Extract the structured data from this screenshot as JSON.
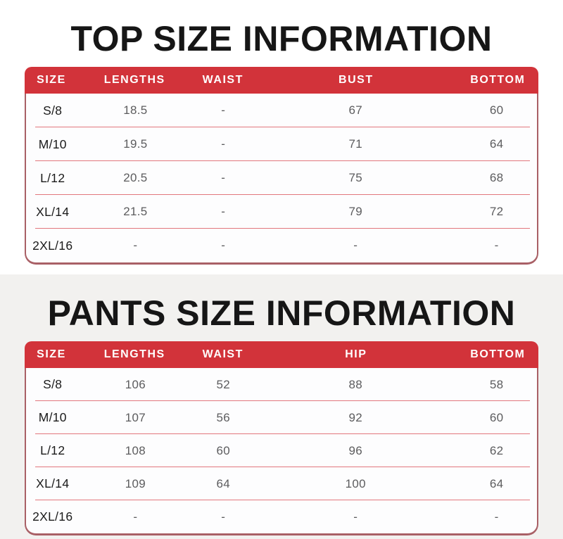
{
  "colors": {
    "header_red": "#d2333a",
    "table_border_maroon": "#a96066",
    "row_divider_pink": "#e2777d",
    "header_text": "#ffffff",
    "title_text": "#161616",
    "size_label_text": "#1a1a1a",
    "value_text": "#5c5c5e",
    "top_section_background": "#ffffff",
    "bottom_section_background": "#f2f1ef"
  },
  "chart_data": [
    {
      "type": "table",
      "title": "TOP SIZE INFORMATION",
      "columns": [
        "SIZE",
        "LENGTHS",
        "WAIST",
        "BUST",
        "BOTTOM"
      ],
      "rows": [
        [
          "S/8",
          "18.5",
          "-",
          "67",
          "60"
        ],
        [
          "M/10",
          "19.5",
          "-",
          "71",
          "64"
        ],
        [
          "L/12",
          "20.5",
          "-",
          "75",
          "68"
        ],
        [
          "XL/14",
          "21.5",
          "-",
          "79",
          "72"
        ],
        [
          "2XL/16",
          "-",
          "-",
          "-",
          "-"
        ]
      ]
    },
    {
      "type": "table",
      "title": "PANTS SIZE INFORMATION",
      "columns": [
        "SIZE",
        "LENGTHS",
        "WAIST",
        "HIP",
        "BOTTOM"
      ],
      "rows": [
        [
          "S/8",
          "106",
          "52",
          "88",
          "58"
        ],
        [
          "M/10",
          "107",
          "56",
          "92",
          "60"
        ],
        [
          "L/12",
          "108",
          "60",
          "96",
          "62"
        ],
        [
          "XL/14",
          "109",
          "64",
          "100",
          "64"
        ],
        [
          "2XL/16",
          "-",
          "-",
          "-",
          "-"
        ]
      ]
    }
  ]
}
